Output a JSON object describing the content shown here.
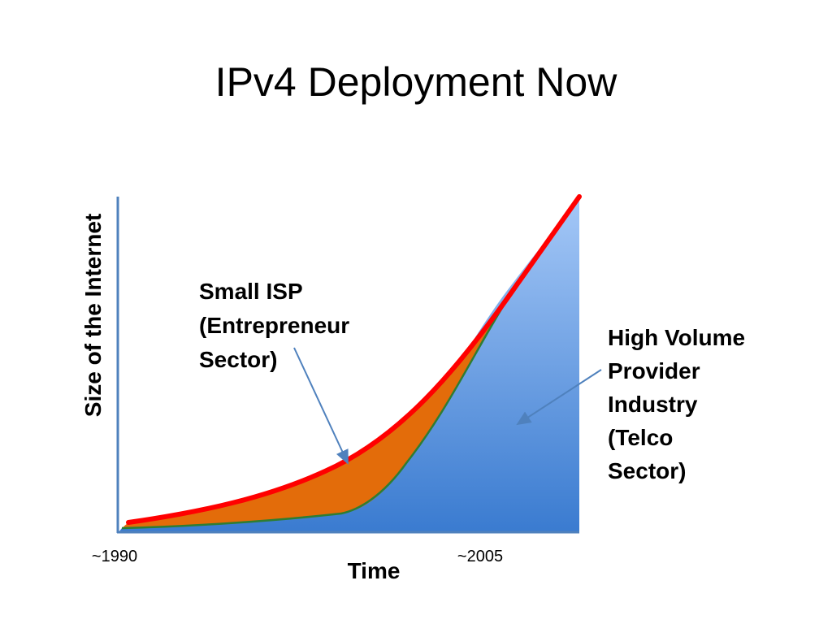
{
  "title": "IPv4 Deployment Now",
  "y_axis_label": "Size of the Internet",
  "x_axis_label": "Time",
  "x_labels": [
    "~1990",
    "~2005"
  ],
  "annotations": [
    {
      "lines": [
        "Small ISP",
        "(Entrepreneur",
        "Sector)"
      ]
    },
    {
      "lines": [
        "High Volume",
        "Provider",
        "Industry",
        "(Telco",
        "Sector)"
      ]
    }
  ]
}
